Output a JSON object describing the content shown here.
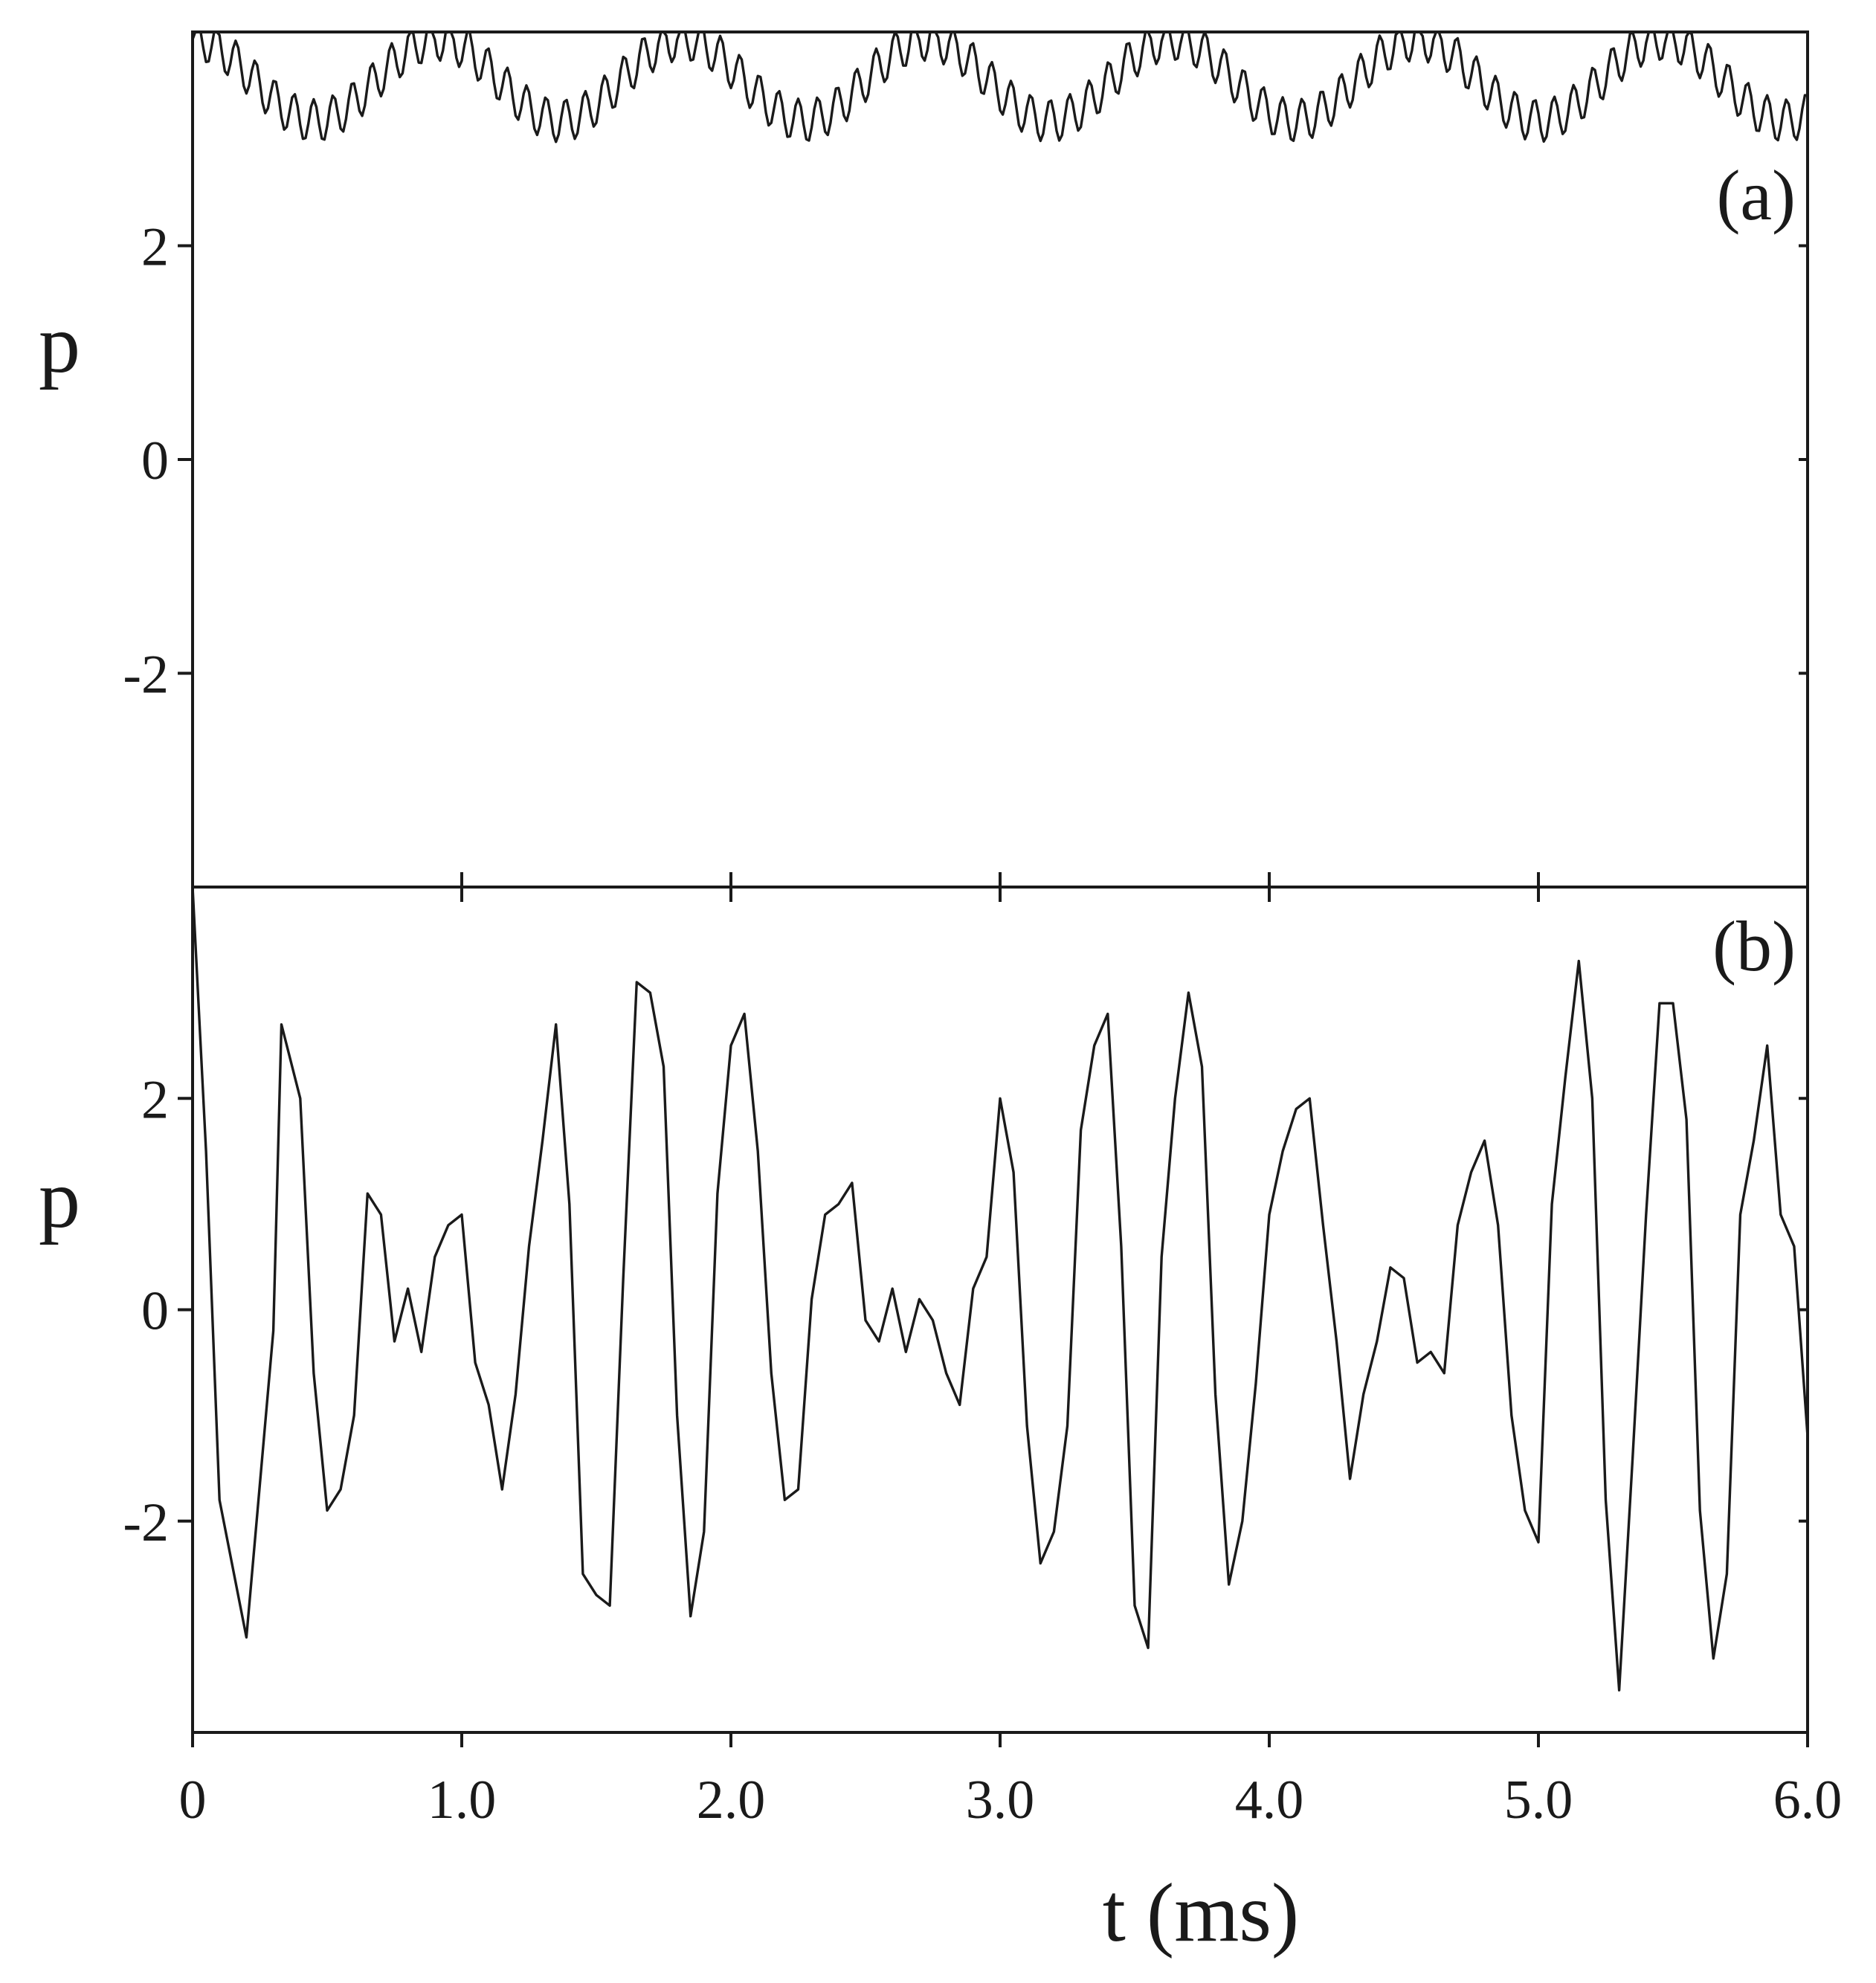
{
  "chart_data": [
    {
      "type": "line",
      "panel_label": "(a)",
      "ylabel": "p",
      "xlim": [
        0,
        6.0
      ],
      "ylim": [
        -4,
        4
      ],
      "y_ticks": [
        2,
        0,
        -2
      ],
      "y_tick_labels": [
        "2",
        "0",
        "-2"
      ],
      "x_ticks": [
        0,
        1.0,
        2.0,
        3.0,
        4.0,
        5.0,
        6.0
      ],
      "x_tick_labels": [],
      "grid": false,
      "trace": {
        "description_points": "Clipped trace: fast ripple between ~3.2 and above 4 (plot top); values above 4 are clipped at the axis boundary.",
        "base": 3.55,
        "envelope_period": 0.91,
        "envelope_amplitude": 0.38,
        "ripple_period": 0.072,
        "ripple_amplitude": 0.2,
        "clip_max": 4.0
      }
    },
    {
      "type": "line",
      "panel_label": "(b)",
      "ylabel": "p",
      "xlabel": "t (ms)",
      "xlim": [
        0,
        6.0
      ],
      "ylim": [
        -4,
        4
      ],
      "y_ticks": [
        2,
        0,
        -2
      ],
      "y_tick_labels": [
        "2",
        "0",
        "-2"
      ],
      "x_ticks": [
        0,
        1.0,
        2.0,
        3.0,
        4.0,
        5.0,
        6.0
      ],
      "x_tick_labels": [
        "0",
        "1.0",
        "2.0",
        "3.0",
        "4.0",
        "5.0",
        "6.0"
      ],
      "grid": false,
      "x": [
        0.0,
        0.05,
        0.1,
        0.2,
        0.3,
        0.33,
        0.4,
        0.45,
        0.5,
        0.55,
        0.6,
        0.65,
        0.7,
        0.75,
        0.8,
        0.85,
        0.9,
        0.95,
        1.0,
        1.05,
        1.1,
        1.15,
        1.2,
        1.25,
        1.3,
        1.35,
        1.4,
        1.45,
        1.5,
        1.55,
        1.6,
        1.65,
        1.7,
        1.75,
        1.8,
        1.85,
        1.9,
        1.95,
        2.0,
        2.05,
        2.1,
        2.15,
        2.2,
        2.25,
        2.3,
        2.35,
        2.4,
        2.45,
        2.5,
        2.55,
        2.6,
        2.65,
        2.7,
        2.75,
        2.8,
        2.85,
        2.9,
        2.95,
        3.0,
        3.05,
        3.1,
        3.15,
        3.2,
        3.25,
        3.3,
        3.35,
        3.4,
        3.45,
        3.5,
        3.55,
        3.6,
        3.65,
        3.7,
        3.75,
        3.8,
        3.85,
        3.9,
        3.95,
        4.0,
        4.05,
        4.1,
        4.15,
        4.2,
        4.25,
        4.3,
        4.35,
        4.4,
        4.45,
        4.5,
        4.55,
        4.6,
        4.65,
        4.7,
        4.75,
        4.8,
        4.85,
        4.9,
        4.95,
        5.0,
        5.05,
        5.1,
        5.15,
        5.2,
        5.25,
        5.3,
        5.35,
        5.4,
        5.45,
        5.5,
        5.55,
        5.6,
        5.65,
        5.7,
        5.75,
        5.8,
        5.85,
        5.9,
        5.95,
        6.0
      ],
      "y": [
        4.0,
        1.5,
        -1.8,
        -3.1,
        -0.2,
        2.7,
        2.0,
        -0.6,
        -1.9,
        -1.7,
        -1.0,
        1.1,
        0.9,
        -0.3,
        0.2,
        -0.4,
        0.5,
        0.8,
        0.9,
        -0.5,
        -0.9,
        -1.7,
        -0.8,
        0.6,
        1.6,
        2.7,
        1.0,
        -2.5,
        -2.7,
        -2.8,
        0.3,
        3.1,
        3.0,
        2.3,
        -1.0,
        -2.9,
        -2.1,
        1.1,
        2.5,
        2.8,
        1.5,
        -0.6,
        -1.8,
        -1.7,
        0.1,
        0.9,
        1.0,
        1.2,
        -0.1,
        -0.3,
        0.2,
        -0.4,
        0.1,
        -0.1,
        -0.6,
        -0.9,
        0.2,
        0.5,
        2.0,
        1.3,
        -1.1,
        -2.4,
        -2.1,
        -1.1,
        1.7,
        2.5,
        2.8,
        0.6,
        -2.8,
        -3.2,
        0.5,
        2.0,
        3.0,
        2.3,
        -0.8,
        -2.6,
        -2.0,
        -0.7,
        0.9,
        1.5,
        1.9,
        2.0,
        0.8,
        -0.3,
        -1.6,
        -0.8,
        -0.3,
        0.4,
        0.3,
        -0.5,
        -0.4,
        -0.6,
        0.8,
        1.3,
        1.6,
        0.8,
        -1.0,
        -1.9,
        -2.2,
        1.0,
        2.2,
        3.3,
        2.0,
        -1.8,
        -3.6,
        -1.4,
        0.9,
        2.9,
        2.9,
        1.8,
        -1.9,
        -3.3,
        -2.5,
        0.9,
        1.6,
        2.5,
        0.9,
        0.6,
        -1.2
      ]
    }
  ]
}
